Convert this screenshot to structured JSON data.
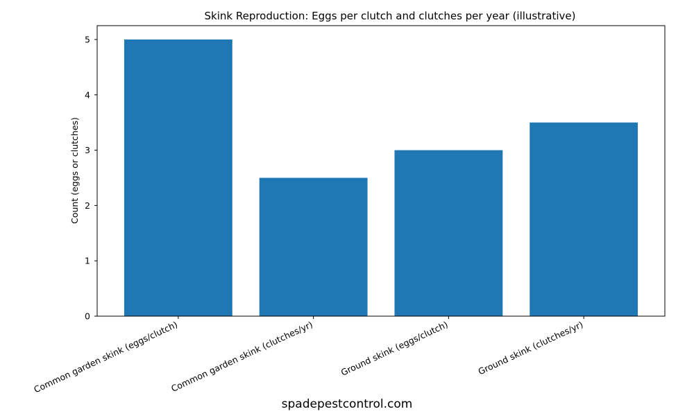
{
  "chart_data": {
    "type": "bar",
    "title": "Skink Reproduction: Eggs per clutch and clutches per year (illustrative)",
    "xlabel": "",
    "ylabel": "Count (eggs or clutches)",
    "categories": [
      "Common garden skink (eggs/clutch)",
      "Common garden skink (clutches/yr)",
      "Ground skink (eggs/clutch)",
      "Ground skink (clutches/yr)"
    ],
    "values": [
      5,
      2.5,
      3,
      3.5
    ],
    "ylim": [
      0,
      5.25
    ],
    "yticks": [
      "0",
      "1",
      "2",
      "3",
      "4",
      "5"
    ],
    "bar_color": "#1f77b4",
    "grid": false,
    "legend": "none"
  },
  "footer": {
    "watermark": "spadepestcontrol.com"
  }
}
